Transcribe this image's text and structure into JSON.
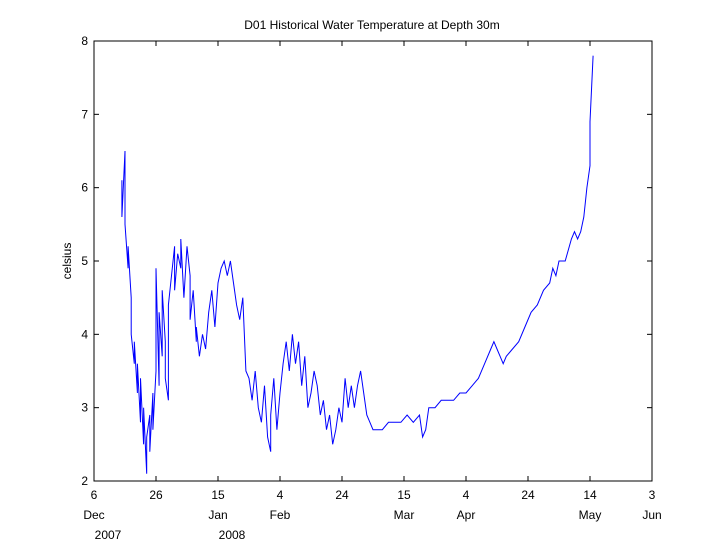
{
  "chart_data": {
    "type": "line",
    "title": "D01 Historical Water Temperature at Depth 30m",
    "xlabel": "",
    "ylabel": "celsius",
    "xlim": [
      "2007-12-06",
      "2008-06-03"
    ],
    "ylim": [
      2,
      8
    ],
    "grid": false,
    "x_ticks": [
      {
        "date": "2007-12-06",
        "label": "6",
        "month": "Dec",
        "year": "2007"
      },
      {
        "date": "2007-12-26",
        "label": "26",
        "month": "",
        "year": ""
      },
      {
        "date": "2008-01-15",
        "label": "15",
        "month": "Jan",
        "year": "2008"
      },
      {
        "date": "2008-02-04",
        "label": "4",
        "month": "Feb",
        "year": ""
      },
      {
        "date": "2008-02-24",
        "label": "24",
        "month": "",
        "year": ""
      },
      {
        "date": "2008-03-15",
        "label": "15",
        "month": "Mar",
        "year": ""
      },
      {
        "date": "2008-04-04",
        "label": "4",
        "month": "Apr",
        "year": ""
      },
      {
        "date": "2008-04-24",
        "label": "24",
        "month": "",
        "year": ""
      },
      {
        "date": "2008-05-14",
        "label": "14",
        "month": "May",
        "year": ""
      },
      {
        "date": "2008-06-03",
        "label": "3",
        "month": "Jun",
        "year": ""
      }
    ],
    "y_ticks": [
      "2",
      "3",
      "4",
      "5",
      "6",
      "7",
      "8"
    ],
    "series": [
      {
        "name": "",
        "color": "#0000ff",
        "points": [
          [
            "2007-12-15",
            6.1
          ],
          [
            "2007-12-15",
            5.6
          ],
          [
            "2007-12-16",
            6.5
          ],
          [
            "2007-12-16",
            5.5
          ],
          [
            "2007-12-17",
            4.9
          ],
          [
            "2007-12-17",
            5.2
          ],
          [
            "2007-12-18",
            4.5
          ],
          [
            "2007-12-18",
            4.0
          ],
          [
            "2007-12-19",
            3.6
          ],
          [
            "2007-12-19",
            3.9
          ],
          [
            "2007-12-20",
            3.2
          ],
          [
            "2007-12-20",
            3.6
          ],
          [
            "2007-12-21",
            2.8
          ],
          [
            "2007-12-21",
            3.4
          ],
          [
            "2007-12-22",
            2.5
          ],
          [
            "2007-12-22",
            3.0
          ],
          [
            "2007-12-23",
            2.1
          ],
          [
            "2007-12-23",
            2.6
          ],
          [
            "2007-12-24",
            2.9
          ],
          [
            "2007-12-24",
            2.4
          ],
          [
            "2007-12-25",
            3.2
          ],
          [
            "2007-12-25",
            2.7
          ],
          [
            "2007-12-26",
            3.5
          ],
          [
            "2007-12-26",
            4.9
          ],
          [
            "2007-12-27",
            3.3
          ],
          [
            "2007-12-27",
            4.3
          ],
          [
            "2007-12-28",
            3.7
          ],
          [
            "2007-12-28",
            4.6
          ],
          [
            "2007-12-29",
            3.9
          ],
          [
            "2007-12-29",
            3.4
          ],
          [
            "2007-12-30",
            3.1
          ],
          [
            "2007-12-30",
            4.4
          ],
          [
            "2007-12-31",
            4.8
          ],
          [
            "2008-01-01",
            5.2
          ],
          [
            "2008-01-01",
            4.6
          ],
          [
            "2008-01-02",
            5.1
          ],
          [
            "2008-01-03",
            4.9
          ],
          [
            "2008-01-03",
            5.3
          ],
          [
            "2008-01-04",
            4.5
          ],
          [
            "2008-01-05",
            5.2
          ],
          [
            "2008-01-06",
            4.8
          ],
          [
            "2008-01-06",
            4.2
          ],
          [
            "2008-01-07",
            4.6
          ],
          [
            "2008-01-08",
            3.9
          ],
          [
            "2008-01-08",
            4.1
          ],
          [
            "2008-01-09",
            3.7
          ],
          [
            "2008-01-10",
            4.0
          ],
          [
            "2008-01-11",
            3.8
          ],
          [
            "2008-01-12",
            4.3
          ],
          [
            "2008-01-13",
            4.6
          ],
          [
            "2008-01-14",
            4.1
          ],
          [
            "2008-01-15",
            4.7
          ],
          [
            "2008-01-16",
            4.9
          ],
          [
            "2008-01-17",
            5.0
          ],
          [
            "2008-01-18",
            4.8
          ],
          [
            "2008-01-19",
            5.0
          ],
          [
            "2008-01-20",
            4.7
          ],
          [
            "2008-01-21",
            4.4
          ],
          [
            "2008-01-22",
            4.2
          ],
          [
            "2008-01-23",
            4.5
          ],
          [
            "2008-01-24",
            3.5
          ],
          [
            "2008-01-25",
            3.4
          ],
          [
            "2008-01-26",
            3.1
          ],
          [
            "2008-01-27",
            3.5
          ],
          [
            "2008-01-28",
            3.0
          ],
          [
            "2008-01-29",
            2.8
          ],
          [
            "2008-01-30",
            3.3
          ],
          [
            "2008-01-31",
            2.6
          ],
          [
            "2008-02-01",
            2.4
          ],
          [
            "2008-02-01",
            2.9
          ],
          [
            "2008-02-02",
            3.4
          ],
          [
            "2008-02-03",
            2.7
          ],
          [
            "2008-02-04",
            3.2
          ],
          [
            "2008-02-05",
            3.6
          ],
          [
            "2008-02-06",
            3.9
          ],
          [
            "2008-02-07",
            3.5
          ],
          [
            "2008-02-08",
            4.0
          ],
          [
            "2008-02-09",
            3.6
          ],
          [
            "2008-02-10",
            3.9
          ],
          [
            "2008-02-11",
            3.3
          ],
          [
            "2008-02-12",
            3.7
          ],
          [
            "2008-02-13",
            3.0
          ],
          [
            "2008-02-14",
            3.2
          ],
          [
            "2008-02-15",
            3.5
          ],
          [
            "2008-02-16",
            3.3
          ],
          [
            "2008-02-17",
            2.9
          ],
          [
            "2008-02-18",
            3.1
          ],
          [
            "2008-02-19",
            2.7
          ],
          [
            "2008-02-20",
            2.9
          ],
          [
            "2008-02-21",
            2.5
          ],
          [
            "2008-02-22",
            2.7
          ],
          [
            "2008-02-23",
            3.0
          ],
          [
            "2008-02-24",
            2.8
          ],
          [
            "2008-02-25",
            3.4
          ],
          [
            "2008-02-26",
            3.0
          ],
          [
            "2008-02-27",
            3.3
          ],
          [
            "2008-02-28",
            3.0
          ],
          [
            "2008-02-29",
            3.3
          ],
          [
            "2008-03-01",
            3.5
          ],
          [
            "2008-03-02",
            3.2
          ],
          [
            "2008-03-03",
            2.9
          ],
          [
            "2008-03-04",
            2.8
          ],
          [
            "2008-03-05",
            2.7
          ],
          [
            "2008-03-06",
            2.7
          ],
          [
            "2008-03-08",
            2.7
          ],
          [
            "2008-03-10",
            2.8
          ],
          [
            "2008-03-12",
            2.8
          ],
          [
            "2008-03-14",
            2.8
          ],
          [
            "2008-03-16",
            2.9
          ],
          [
            "2008-03-18",
            2.8
          ],
          [
            "2008-03-20",
            2.9
          ],
          [
            "2008-03-21",
            2.6
          ],
          [
            "2008-03-22",
            2.7
          ],
          [
            "2008-03-23",
            3.0
          ],
          [
            "2008-03-25",
            3.0
          ],
          [
            "2008-03-27",
            3.1
          ],
          [
            "2008-03-29",
            3.1
          ],
          [
            "2008-03-31",
            3.1
          ],
          [
            "2008-04-02",
            3.2
          ],
          [
            "2008-04-04",
            3.2
          ],
          [
            "2008-04-06",
            3.3
          ],
          [
            "2008-04-08",
            3.4
          ],
          [
            "2008-04-10",
            3.6
          ],
          [
            "2008-04-12",
            3.8
          ],
          [
            "2008-04-13",
            3.9
          ],
          [
            "2008-04-14",
            3.8
          ],
          [
            "2008-04-15",
            3.7
          ],
          [
            "2008-04-16",
            3.6
          ],
          [
            "2008-04-17",
            3.7
          ],
          [
            "2008-04-19",
            3.8
          ],
          [
            "2008-04-21",
            3.9
          ],
          [
            "2008-04-23",
            4.1
          ],
          [
            "2008-04-25",
            4.3
          ],
          [
            "2008-04-27",
            4.4
          ],
          [
            "2008-04-29",
            4.6
          ],
          [
            "2008-05-01",
            4.7
          ],
          [
            "2008-05-02",
            4.9
          ],
          [
            "2008-05-03",
            4.8
          ],
          [
            "2008-05-04",
            5.0
          ],
          [
            "2008-05-06",
            5.0
          ],
          [
            "2008-05-08",
            5.3
          ],
          [
            "2008-05-09",
            5.4
          ],
          [
            "2008-05-10",
            5.3
          ],
          [
            "2008-05-11",
            5.4
          ],
          [
            "2008-05-12",
            5.6
          ],
          [
            "2008-05-13",
            6.0
          ],
          [
            "2008-05-14",
            6.3
          ],
          [
            "2008-05-14",
            6.9
          ],
          [
            "2008-05-15",
            7.8
          ]
        ]
      }
    ]
  }
}
